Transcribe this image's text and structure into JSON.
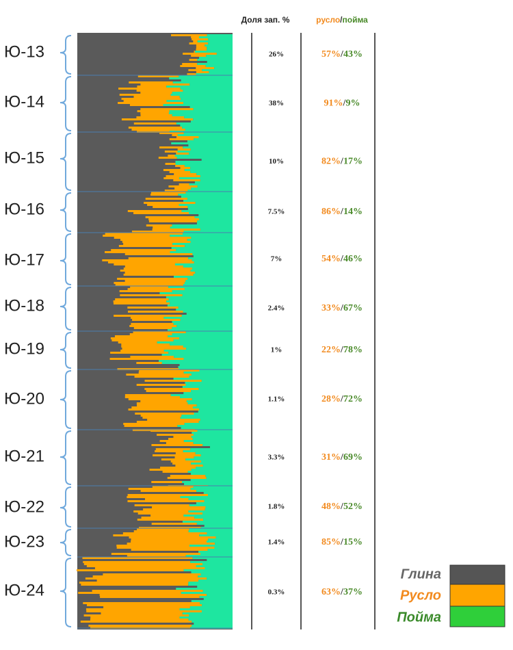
{
  "header": {
    "share": "Доля зап. %",
    "channel": "русло",
    "separator": "/",
    "floodplain": "пойма"
  },
  "layers": [
    {
      "name": "Ю-13",
      "share": "26%",
      "channel": "57%",
      "floodplain": "43%"
    },
    {
      "name": "Ю-14",
      "share": "38%",
      "channel": "91%",
      "floodplain": "9%"
    },
    {
      "name": "Ю-15",
      "share": "10%",
      "channel": "82%",
      "floodplain": "17%"
    },
    {
      "name": "Ю-16",
      "share": "7.5%",
      "channel": "86%",
      "floodplain": "14%"
    },
    {
      "name": "Ю-17",
      "share": "7%",
      "channel": "54%",
      "floodplain": "46%"
    },
    {
      "name": "Ю-18",
      "share": "2.4%",
      "channel": "33%",
      "floodplain": "67%"
    },
    {
      "name": "Ю-19",
      "share": "1%",
      "channel": "22%",
      "floodplain": "78%"
    },
    {
      "name": "Ю-20",
      "share": "1.1%",
      "channel": "28%",
      "floodplain": "72%"
    },
    {
      "name": "Ю-21",
      "share": "3.3%",
      "channel": "31%",
      "floodplain": "69%"
    },
    {
      "name": "Ю-22",
      "share": "1.8%",
      "channel": "48%",
      "floodplain": "52%"
    },
    {
      "name": "Ю-23",
      "share": "1.4%",
      "channel": "85%",
      "floodplain": "15%"
    },
    {
      "name": "Ю-24",
      "share": "0.3%",
      "channel": "63%",
      "floodplain": "37%"
    }
  ],
  "legend": {
    "clay": "Глина",
    "channel": "Русло",
    "floodplain": "Пойма"
  }
}
